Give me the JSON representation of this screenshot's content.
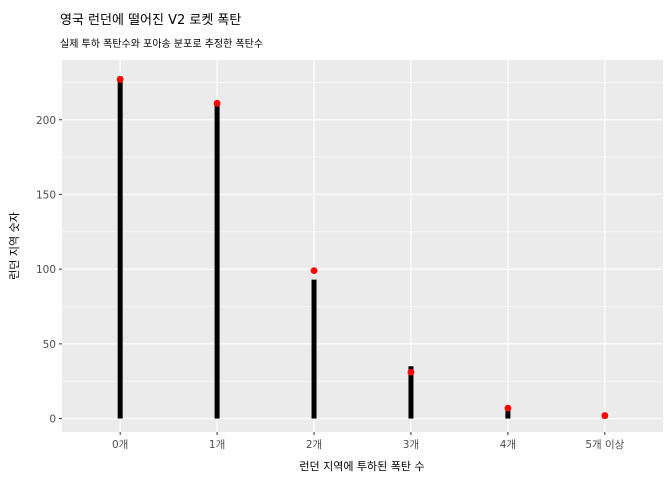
{
  "chart_data": {
    "type": "bar",
    "title": "영국 런던에 떨어진 V2 로켓 폭탄",
    "subtitle": "실제 투하 폭탄수와 포아송 분포로 추정한 폭탄수",
    "xlabel": "런던 지역에 투하된 폭탄 수",
    "ylabel": "런던 지역 숫자",
    "categories": [
      "0개",
      "1개",
      "2개",
      "3개",
      "4개",
      "5개 이상"
    ],
    "series": [
      {
        "values": [
          229,
          211,
          93,
          35,
          7,
          1
        ],
        "color": "#000000",
        "mark": "bar"
      },
      {
        "values": [
          227,
          211,
          99,
          31,
          7,
          2
        ],
        "color": "#ff0000",
        "mark": "point"
      }
    ],
    "yticks": [
      0,
      50,
      100,
      150,
      200
    ],
    "ylim": [
      -9,
      240
    ],
    "grid": true,
    "legend": "none",
    "panel_color": "#ebebeb"
  }
}
